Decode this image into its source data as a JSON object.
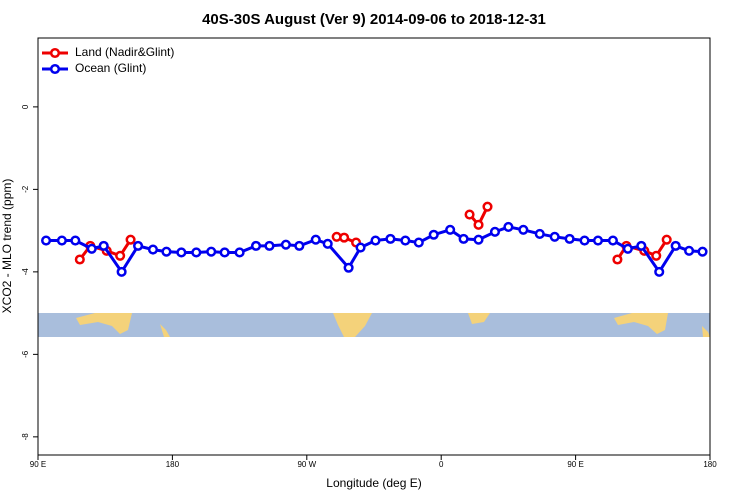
{
  "chart_data": {
    "type": "line",
    "title": "40S-30S August (Ver 9)   2014-09-06 to 2018-12-31",
    "x_label": "Longitude (deg E)",
    "y_label": "XCO2 - MLO trend (ppm)",
    "xlim": [
      90,
      540
    ],
    "ylim": [
      -8.44,
      1.67
    ],
    "xticks": [
      {
        "value": 90,
        "label": "90 E"
      },
      180,
      {
        "value": 270,
        "label": "90 W"
      },
      {
        "value": 360,
        "label": "0"
      },
      {
        "value": 450,
        "label": "90 E"
      },
      {
        "value": 540,
        "label": "180"
      }
    ],
    "yticks": [
      0,
      -2,
      -4,
      -6,
      -8
    ],
    "legend": "top-left",
    "series": [
      {
        "name": "Land (Nadir&Glint)",
        "color": "#ee0000",
        "x": [
          118,
          125,
          136,
          145,
          152,
          null,
          290,
          295,
          303,
          null,
          379,
          385,
          391,
          null,
          478,
          484,
          496,
          504,
          511
        ],
        "values": [
          -3.7,
          -3.37,
          -3.49,
          -3.61,
          -3.22,
          null,
          -3.15,
          -3.17,
          -3.29,
          null,
          -2.61,
          -2.86,
          -2.42,
          null,
          -3.7,
          -3.37,
          -3.49,
          -3.61,
          -3.22
        ]
      },
      {
        "name": "Ocean (Glint)",
        "color": "#0000ee",
        "x": [
          95.4,
          106,
          115,
          126,
          134,
          146,
          157,
          167,
          176,
          186,
          196,
          206,
          215,
          225,
          236,
          245,
          256,
          265,
          276,
          284,
          298,
          306,
          316,
          326,
          336,
          345,
          355,
          366,
          375,
          385,
          396,
          405,
          415,
          426,
          436,
          446,
          456,
          465,
          475,
          485,
          494,
          506,
          517,
          526,
          535
        ],
        "values": [
          -3.24,
          -3.24,
          -3.24,
          -3.44,
          -3.37,
          -4.0,
          -3.37,
          -3.46,
          -3.51,
          -3.53,
          -3.53,
          -3.51,
          -3.53,
          -3.53,
          -3.37,
          -3.37,
          -3.34,
          -3.37,
          -3.22,
          -3.32,
          -3.9,
          -3.41,
          -3.24,
          -3.2,
          -3.24,
          -3.29,
          -3.1,
          -2.98,
          -3.2,
          -3.22,
          -3.03,
          -2.91,
          -2.98,
          -3.08,
          -3.15,
          -3.2,
          -3.24,
          -3.24,
          -3.24,
          -3.44,
          -3.37,
          -4.0,
          -3.37,
          -3.49,
          -3.51
        ]
      }
    ]
  }
}
